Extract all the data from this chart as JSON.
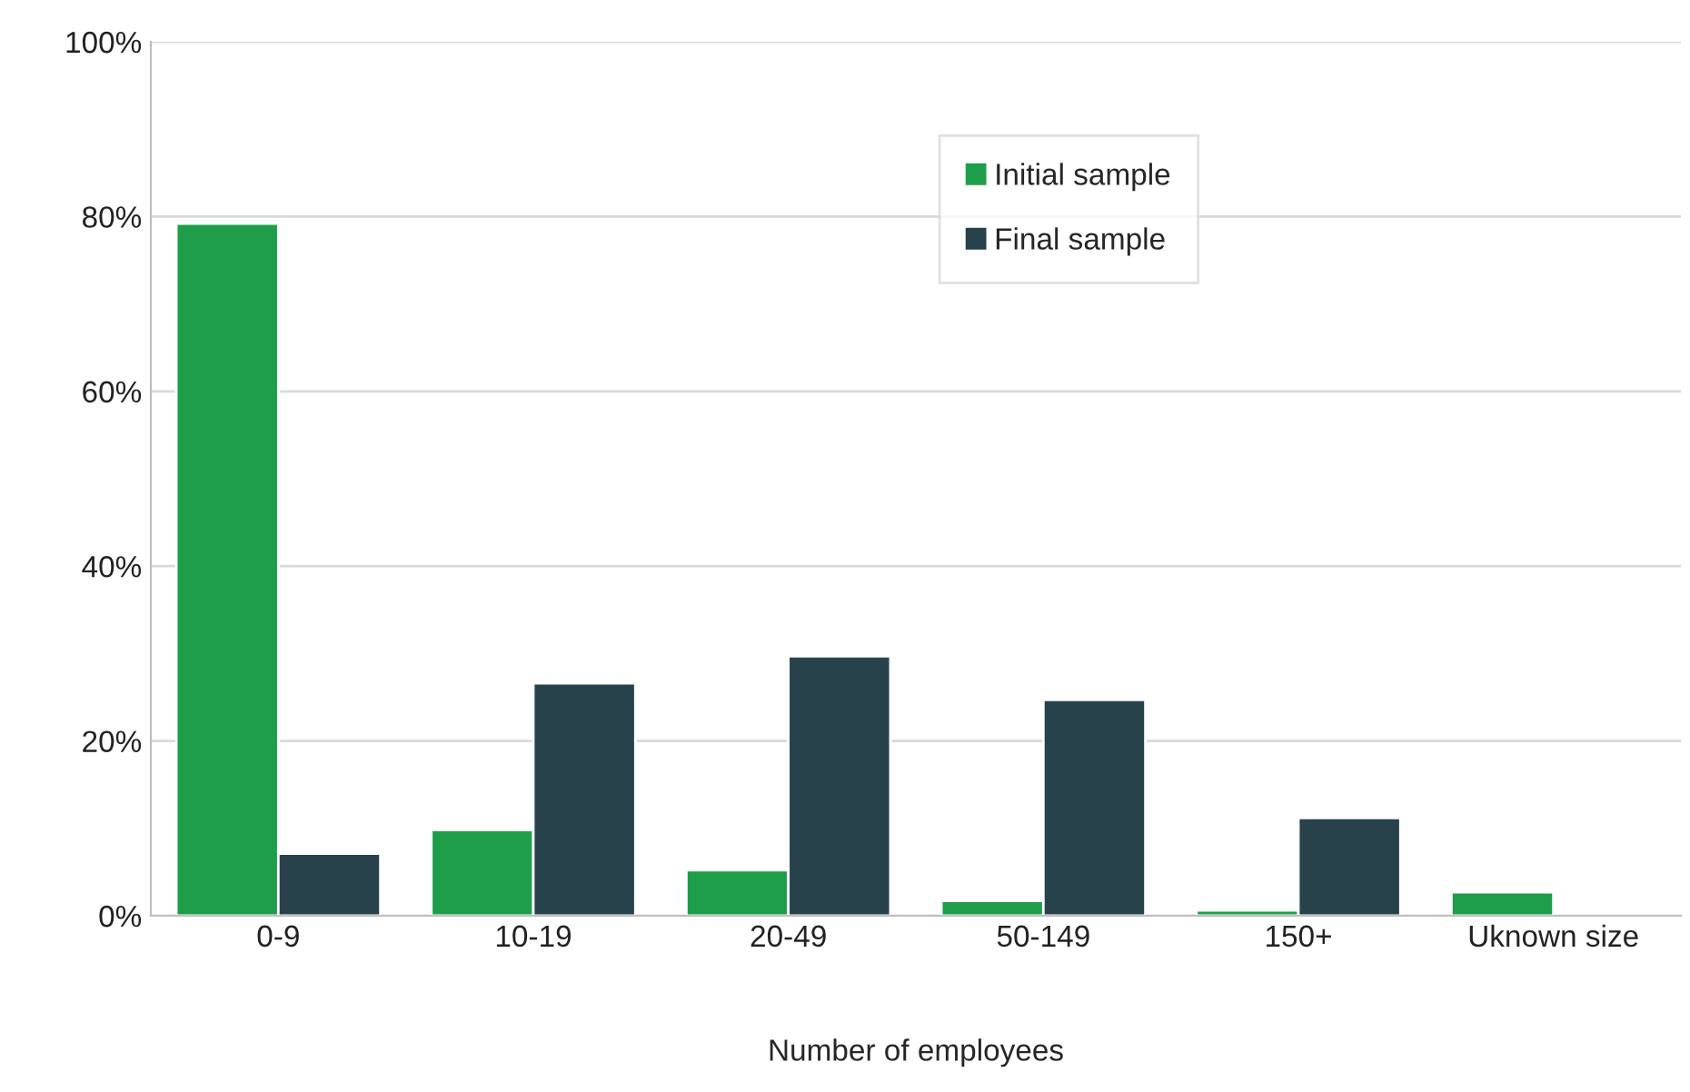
{
  "chart_data": {
    "type": "bar",
    "xlabel": "Number of employees",
    "categories": [
      "0-9",
      "10-19",
      "20-49",
      "50-149",
      "150+",
      "Uknown size"
    ],
    "series": [
      {
        "name": "Initial sample",
        "color": "#1e9e4a",
        "values": [
          79.2,
          9.8,
          5.2,
          1.7,
          0.6,
          2.7
        ]
      },
      {
        "name": "Final sample",
        "color": "#27424a",
        "values": [
          7.1,
          26.6,
          29.7,
          24.7,
          11.2,
          null
        ]
      }
    ],
    "ylim": [
      0,
      100
    ],
    "yticks": [
      {
        "value": 0,
        "label": "0%"
      },
      {
        "value": 20,
        "label": "20%"
      },
      {
        "value": 40,
        "label": "40%"
      },
      {
        "value": 60,
        "label": "60%"
      },
      {
        "value": 80,
        "label": "80%"
      },
      {
        "value": 100,
        "label": "100%"
      }
    ],
    "grid": "y",
    "legend": "top"
  }
}
